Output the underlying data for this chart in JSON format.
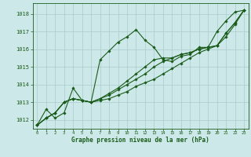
{
  "xlabel": "Graphe pression niveau de la mer (hPa)",
  "bg_color": "#cce8e8",
  "grid_color": "#aacccc",
  "line_color": "#1a5c1a",
  "text_color": "#1a5c1a",
  "xlim": [
    -0.5,
    23.5
  ],
  "ylim": [
    1011.5,
    1018.6
  ],
  "yticks": [
    1012,
    1013,
    1014,
    1015,
    1016,
    1017,
    1018
  ],
  "xticks": [
    0,
    1,
    2,
    3,
    4,
    5,
    6,
    7,
    8,
    9,
    10,
    11,
    12,
    13,
    14,
    15,
    16,
    17,
    18,
    19,
    20,
    21,
    22,
    23
  ],
  "series": [
    [
      1011.7,
      1012.6,
      1012.1,
      1012.4,
      1013.8,
      1013.1,
      1013.0,
      1015.4,
      1015.9,
      1016.4,
      1016.7,
      1017.1,
      1016.5,
      1016.1,
      1015.4,
      1015.3,
      1015.6,
      1015.7,
      1016.1,
      1016.1,
      1017.0,
      1017.6,
      1018.1,
      1018.2
    ],
    [
      1011.7,
      1012.1,
      1012.4,
      1013.0,
      1013.2,
      1013.1,
      1013.0,
      1013.1,
      1013.2,
      1013.4,
      1013.6,
      1013.9,
      1014.1,
      1014.3,
      1014.6,
      1014.9,
      1015.2,
      1015.5,
      1015.8,
      1016.0,
      1016.2,
      1016.7,
      1017.4,
      1018.2
    ],
    [
      1011.7,
      1012.1,
      1012.4,
      1013.0,
      1013.2,
      1013.1,
      1013.0,
      1013.2,
      1013.4,
      1013.7,
      1014.0,
      1014.3,
      1014.6,
      1015.0,
      1015.3,
      1015.5,
      1015.7,
      1015.8,
      1016.0,
      1016.1,
      1016.2,
      1016.9,
      1017.5,
      1018.2
    ],
    [
      1011.7,
      1012.1,
      1012.4,
      1013.0,
      1013.2,
      1013.1,
      1013.0,
      1013.2,
      1013.5,
      1013.8,
      1014.2,
      1014.6,
      1015.0,
      1015.4,
      1015.5,
      1015.5,
      1015.7,
      1015.8,
      1016.0,
      1016.1,
      1016.2,
      1016.9,
      1017.5,
      1018.2
    ]
  ],
  "marker": "D",
  "markersize": 1.8,
  "linewidth": 0.8
}
